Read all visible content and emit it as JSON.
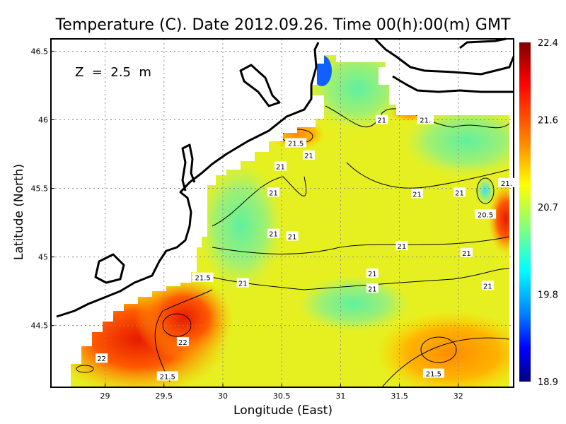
{
  "chart_data": {
    "type": "heatmap",
    "title": "Temperature (C). Date 2012.09.26. Time 00(h):00(m) GMT",
    "annotation": "Z  =  2.5  m",
    "xlabel": "Longitude (East)",
    "ylabel": "Latitude (North)",
    "xlim": [
      28.54,
      32.47
    ],
    "ylim": [
      44.05,
      46.59
    ],
    "xticks": [
      "29",
      "29.5",
      "30",
      "30.5",
      "31",
      "31.5",
      "32"
    ],
    "xtick_values": [
      29,
      29.5,
      30,
      30.5,
      31,
      31.5,
      32
    ],
    "yticks": [
      "44.5",
      "45",
      "45.5",
      "46",
      "46.5"
    ],
    "ytick_values": [
      44.5,
      45,
      45.5,
      46,
      46.5
    ],
    "grid": true,
    "colorbar": {
      "range": [
        18.9,
        22.4
      ],
      "tick_labels": [
        "22.4",
        "21.6",
        "20.7",
        "19.8",
        "18.9"
      ],
      "tick_values": [
        22.4,
        21.6,
        20.7,
        19.8,
        18.9
      ],
      "colors": [
        "#800000",
        "#ff0000",
        "#ff8c00",
        "#ffff00",
        "#80ff80",
        "#00ffff",
        "#0080ff",
        "#0000ff",
        "#000080"
      ]
    },
    "contour_labels": [
      {
        "text": "21.5",
        "lon": 30.62,
        "lat": 45.83
      },
      {
        "text": "21",
        "lon": 30.73,
        "lat": 45.74
      },
      {
        "text": "21",
        "lon": 30.49,
        "lat": 45.66
      },
      {
        "text": "21",
        "lon": 30.43,
        "lat": 45.47
      },
      {
        "text": "21",
        "lon": 31.65,
        "lat": 45.46
      },
      {
        "text": "21",
        "lon": 32.01,
        "lat": 45.47
      },
      {
        "text": "21.",
        "lon": 32.41,
        "lat": 45.54
      },
      {
        "text": "20.5",
        "lon": 32.23,
        "lat": 45.31
      },
      {
        "text": "21",
        "lon": 30.43,
        "lat": 45.17
      },
      {
        "text": "21",
        "lon": 30.59,
        "lat": 45.15
      },
      {
        "text": "21",
        "lon": 31.52,
        "lat": 45.08
      },
      {
        "text": "21",
        "lon": 32.07,
        "lat": 45.03
      },
      {
        "text": "21.5",
        "lon": 29.83,
        "lat": 44.85
      },
      {
        "text": "21",
        "lon": 30.17,
        "lat": 44.81
      },
      {
        "text": "21",
        "lon": 31.27,
        "lat": 44.88
      },
      {
        "text": "21",
        "lon": 31.27,
        "lat": 44.77
      },
      {
        "text": "21",
        "lon": 32.25,
        "lat": 44.79
      },
      {
        "text": "22",
        "lon": 29.66,
        "lat": 44.38
      },
      {
        "text": "22",
        "lon": 28.97,
        "lat": 44.26
      },
      {
        "text": "21.5",
        "lon": 29.53,
        "lat": 44.13
      },
      {
        "text": "21.5",
        "lon": 31.79,
        "lat": 44.15
      },
      {
        "text": "21",
        "lon": 31.35,
        "lat": 46.0
      },
      {
        "text": "21.",
        "lon": 31.72,
        "lat": 46.0
      }
    ]
  }
}
